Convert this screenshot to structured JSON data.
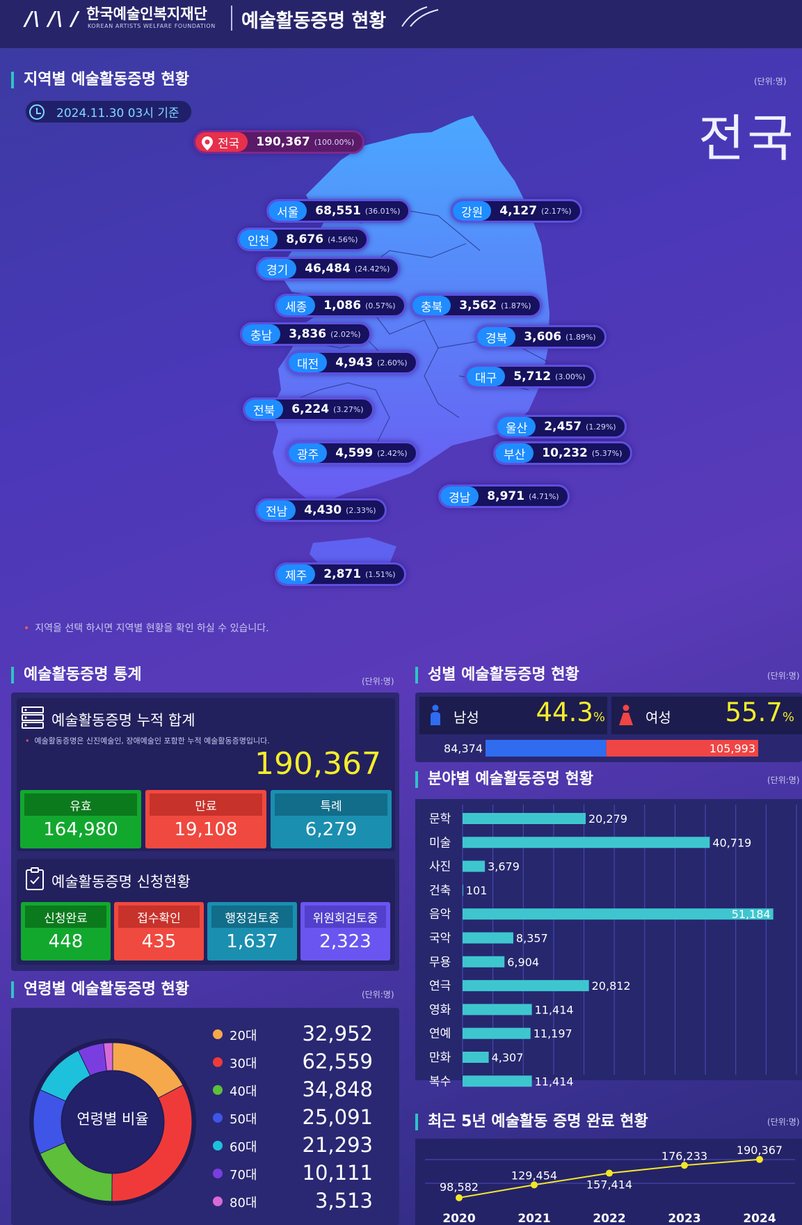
{
  "header": {
    "logo_mark": "/\\ /\\ /",
    "org_name": "한국예술인복지재단",
    "org_name_en": "KOREAN ARTISTS WELFARE FOUNDATION",
    "page_title": "예술활동증명 현황"
  },
  "map_section": {
    "title": "지역별 예술활동증명 현황",
    "unit": "(단위:명)",
    "date_label": "2024.11.30 03시 기준",
    "selected_region": "전국",
    "note": "지역을 선택 하시면 지역별 현황을 확인 하실 수 있습니다.",
    "national": {
      "name": "전국",
      "value": "190,367",
      "pct": "(100.00%)"
    },
    "regions": [
      {
        "name": "서울",
        "value": "68,551",
        "pct": "(36.01%)"
      },
      {
        "name": "강원",
        "value": "4,127",
        "pct": "(2.17%)"
      },
      {
        "name": "인천",
        "value": "8,676",
        "pct": "(4.56%)"
      },
      {
        "name": "경기",
        "value": "46,484",
        "pct": "(24.42%)"
      },
      {
        "name": "세종",
        "value": "1,086",
        "pct": "(0.57%)"
      },
      {
        "name": "충북",
        "value": "3,562",
        "pct": "(1.87%)"
      },
      {
        "name": "충남",
        "value": "3,836",
        "pct": "(2.02%)"
      },
      {
        "name": "경북",
        "value": "3,606",
        "pct": "(1.89%)"
      },
      {
        "name": "대전",
        "value": "4,943",
        "pct": "(2.60%)"
      },
      {
        "name": "대구",
        "value": "5,712",
        "pct": "(3.00%)"
      },
      {
        "name": "전북",
        "value": "6,224",
        "pct": "(3.27%)"
      },
      {
        "name": "울산",
        "value": "2,457",
        "pct": "(1.29%)"
      },
      {
        "name": "광주",
        "value": "4,599",
        "pct": "(2.42%)"
      },
      {
        "name": "부산",
        "value": "10,232",
        "pct": "(5.37%)"
      },
      {
        "name": "경남",
        "value": "8,971",
        "pct": "(4.71%)"
      },
      {
        "name": "전남",
        "value": "4,430",
        "pct": "(2.33%)"
      },
      {
        "name": "제주",
        "value": "2,871",
        "pct": "(1.51%)"
      }
    ]
  },
  "stats": {
    "title": "예술활동증명 통계",
    "unit": "(단위:명)",
    "cumulative_title": "예술활동증명 누적 합계",
    "cumulative_note": "예술활동증명은 신진예술인, 장애예술인 포함한 누적 예술활동증명입니다.",
    "cumulative_total": "190,367",
    "status": [
      {
        "label": "유효",
        "value": "164,980",
        "color": "#12a82e",
        "head": "#0b7a1d"
      },
      {
        "label": "만료",
        "value": "19,108",
        "color": "#f0493f",
        "head": "#c7322b"
      },
      {
        "label": "특례",
        "value": "6,279",
        "color": "#1a8fb0",
        "head": "#116d8a"
      }
    ],
    "application_title": "예술활동증명 신청현황",
    "applications": [
      {
        "label": "신청완료",
        "value": "448",
        "color": "#12a82e",
        "head": "#0b7a1d"
      },
      {
        "label": "접수확인",
        "value": "435",
        "color": "#f0493f",
        "head": "#c7322b"
      },
      {
        "label": "행정검토중",
        "value": "1,637",
        "color": "#1a8fb0",
        "head": "#116d8a"
      },
      {
        "label": "위원회검토중",
        "value": "2,323",
        "color": "#6a55f0",
        "head": "#5240cc"
      }
    ]
  },
  "gender": {
    "title": "성별 예술활동증명 현황",
    "unit": "(단위:명)",
    "male_label": "남성",
    "male_pct": "44.3",
    "male_count": "84,374",
    "male_color": "#2f6cf0",
    "female_label": "여성",
    "female_pct": "55.7",
    "female_count": "105,993",
    "female_color": "#f04545",
    "pct_sign": "%"
  },
  "field": {
    "title": "분야별 예술활동증명 현황",
    "unit": "(단위:명)",
    "chart_data": {
      "type": "bar",
      "orientation": "horizontal",
      "categories": [
        "문학",
        "미술",
        "사진",
        "건축",
        "음악",
        "국악",
        "무용",
        "연극",
        "영화",
        "연예",
        "만화",
        "복수"
      ],
      "values": [
        20279,
        40719,
        3679,
        101,
        51184,
        8357,
        6904,
        20812,
        11414,
        11197,
        4307,
        11414
      ],
      "value_labels": [
        "20,279",
        "40,719",
        "3,679",
        "101",
        "51,184",
        "8,357",
        "6,904",
        "20,812",
        "11,414",
        "11,197",
        "4,307",
        "11,414"
      ],
      "xlim": [
        0,
        55000
      ],
      "grid": true,
      "bar_color": "#3ec6cf"
    }
  },
  "trend": {
    "title": "최근 5년 예술활동 증명 완료 현황",
    "unit": "(단위:명)",
    "chart_data": {
      "type": "line",
      "x": [
        "2020",
        "2021",
        "2022",
        "2023",
        "2024"
      ],
      "values": [
        98582,
        129454,
        157414,
        176233,
        190367
      ],
      "value_labels": [
        "98,582",
        "129,454",
        "157,414",
        "176,233",
        "190,367"
      ],
      "line_color": "#f2e62a"
    }
  },
  "age": {
    "title": "연령별 예술활동증명 현황",
    "unit": "(단위:명)",
    "donut_label": "연령별 비율",
    "chart_data": {
      "type": "pie",
      "style": "donut",
      "categories": [
        "20대",
        "30대",
        "40대",
        "50대",
        "60대",
        "70대",
        "80대"
      ],
      "values": [
        32952,
        62559,
        34848,
        25091,
        21293,
        10111,
        3513
      ],
      "value_labels": [
        "32,952",
        "62,559",
        "34,848",
        "25,091",
        "21,293",
        "10,111",
        "3,513"
      ],
      "colors": [
        "#f6a94a",
        "#f03a3a",
        "#5dbf3a",
        "#3f55e8",
        "#1ec1dc",
        "#7a3ee0",
        "#d86ad6"
      ]
    }
  }
}
